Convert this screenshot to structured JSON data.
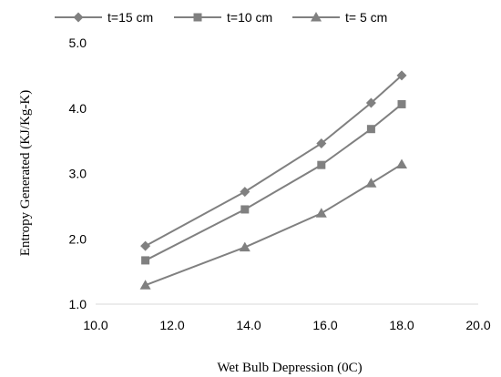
{
  "chart_data": {
    "type": "line",
    "title": "",
    "xlabel": "Wet Bulb Depression (0C)",
    "ylabel": "Entropy Generated (KJ/Kg-K)",
    "xlim": [
      10.0,
      20.0
    ],
    "ylim": [
      1.0,
      5.0
    ],
    "x_ticks": [
      "10.0",
      "12.0",
      "14.0",
      "16.0",
      "18.0",
      "20.0"
    ],
    "y_ticks": [
      "1.0",
      "2.0",
      "3.0",
      "4.0",
      "5.0"
    ],
    "grid": false,
    "legend_position": "top",
    "line_color": "#808080",
    "series": [
      {
        "name": "t=15 cm",
        "marker": "diamond",
        "x": [
          11.3,
          13.9,
          15.9,
          17.2,
          18.0
        ],
        "y": [
          1.89,
          2.72,
          3.46,
          4.08,
          4.5
        ]
      },
      {
        "name": "t=10 cm",
        "marker": "square",
        "x": [
          11.3,
          13.9,
          15.9,
          17.2,
          18.0
        ],
        "y": [
          1.67,
          2.45,
          3.13,
          3.68,
          4.06
        ]
      },
      {
        "name": "t= 5 cm",
        "marker": "triangle",
        "x": [
          11.3,
          13.9,
          15.9,
          17.2,
          18.0
        ],
        "y": [
          1.29,
          1.87,
          2.39,
          2.85,
          3.14
        ]
      }
    ]
  }
}
